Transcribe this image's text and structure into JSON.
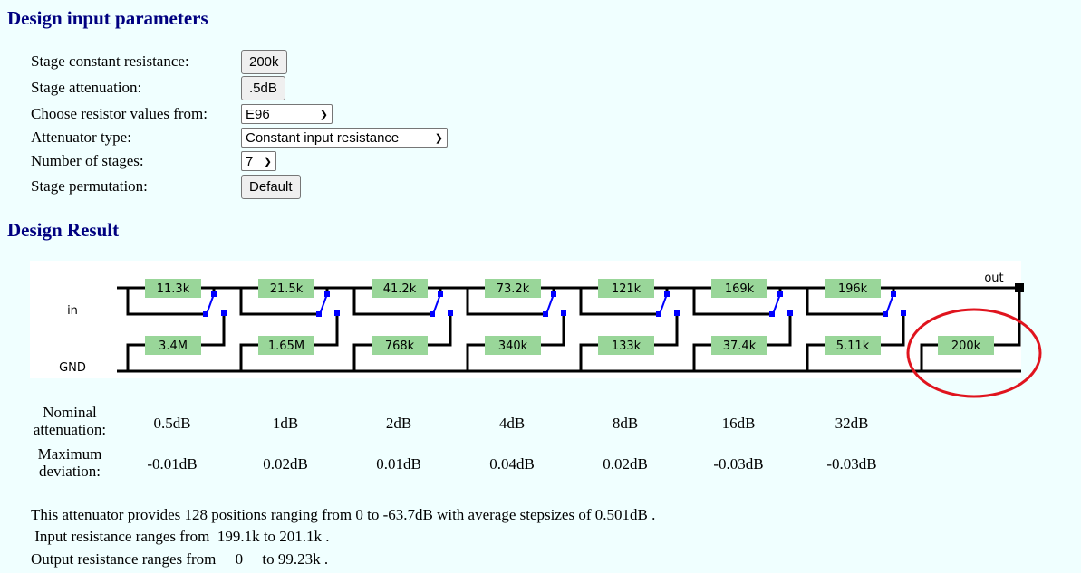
{
  "input_section": {
    "title": "Design input parameters",
    "fields": [
      {
        "label": "Stage constant resistance:",
        "type": "button",
        "value": "200k"
      },
      {
        "label": "Stage attenuation:",
        "type": "button",
        "value": ".5dB"
      },
      {
        "label": "Choose resistor values from:",
        "type": "select",
        "value": "E96"
      },
      {
        "label": "Attenuator type:",
        "type": "select",
        "value": "Constant input resistance"
      },
      {
        "label": "Number of stages:",
        "type": "select",
        "value": "7"
      },
      {
        "label": "Stage permutation:",
        "type": "button",
        "value": "Default"
      }
    ]
  },
  "result_section": {
    "title": "Design Result",
    "diagram": {
      "in_label": "in",
      "gnd_label": "GND",
      "out_label": "out",
      "series_resistors": [
        "11.3k",
        "21.5k",
        "41.2k",
        "73.2k",
        "121k",
        "169k",
        "196k"
      ],
      "shunt_resistors": [
        "3.4M",
        "1.65M",
        "768k",
        "340k",
        "133k",
        "37.4k",
        "5.11k"
      ],
      "termination_resistor": "200k",
      "colors": {
        "resistor_fill": "#99d699",
        "switch": "#0000ff",
        "wire": "#000000",
        "highlight_circle": "#e0141e"
      }
    },
    "table": {
      "row_labels": [
        "Nominal attenuation:",
        "Maximum deviation:"
      ],
      "nominal": [
        "0.5dB",
        "1dB",
        "2dB",
        "4dB",
        "8dB",
        "16dB",
        "32dB"
      ],
      "deviation": [
        "-0.01dB",
        "0.02dB",
        "0.01dB",
        "0.04dB",
        "0.02dB",
        "-0.03dB",
        "-0.03dB"
      ]
    },
    "summary": {
      "line1": "This attenuator provides 128 positions ranging from 0 to -63.7dB with average stepsizes of 0.501dB .",
      "line2": " Input resistance ranges from  199.1k to 201.1k .",
      "line3": "Output resistance ranges from     0     to 99.23k ."
    }
  }
}
